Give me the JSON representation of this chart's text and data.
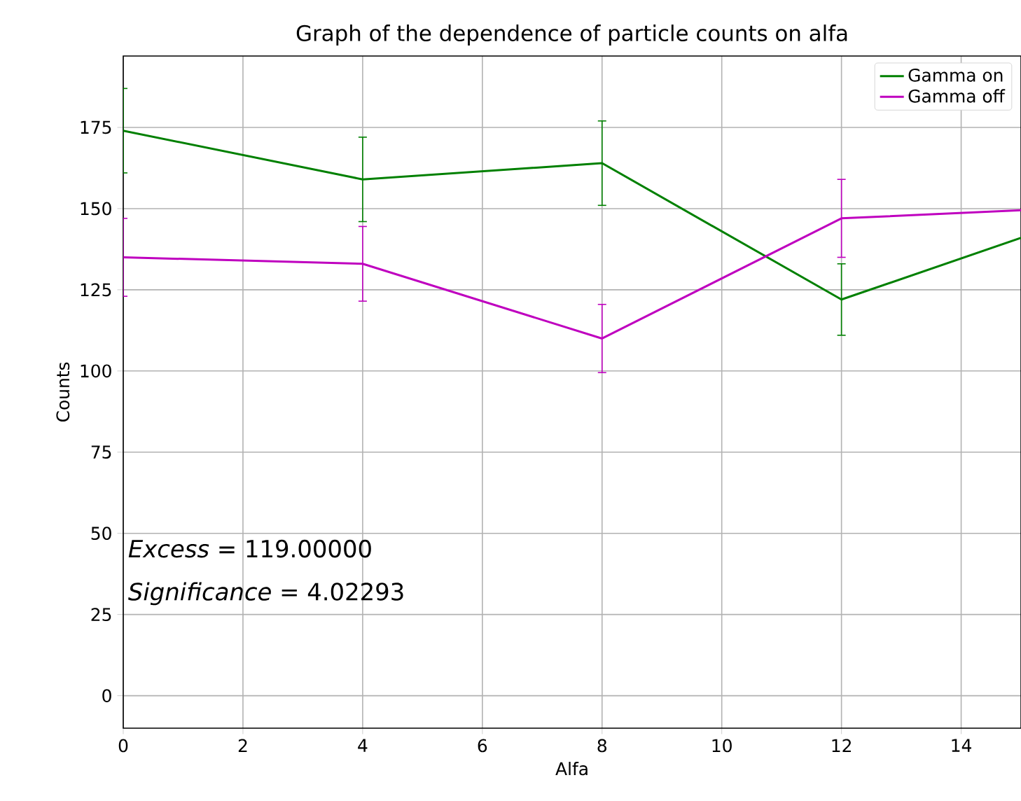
{
  "chart_data": {
    "type": "line",
    "title": "Graph of the dependence of particle counts on alfa",
    "xlabel": "Alfa",
    "ylabel": "Counts",
    "x": [
      0,
      4,
      8,
      12,
      15
    ],
    "series": [
      {
        "name": "Gamma on",
        "color": "#008000",
        "values": [
          174,
          159,
          164,
          122,
          141
        ],
        "errors": [
          13,
          13,
          13,
          11,
          null
        ]
      },
      {
        "name": "Gamma off",
        "color": "#bf00bf",
        "values": [
          135,
          133,
          110,
          147,
          149.5
        ],
        "errors": [
          12,
          11.5,
          10.5,
          12,
          null
        ]
      }
    ],
    "xlim": [
      0,
      15
    ],
    "xticks": [
      0,
      2,
      4,
      6,
      8,
      10,
      12,
      14
    ],
    "ylim": [
      -10,
      197
    ],
    "yticks": [
      0,
      25,
      50,
      75,
      100,
      125,
      150,
      175
    ],
    "grid": true,
    "legend": "top right",
    "marker": "none",
    "line_style": "solid",
    "annotations": [
      "*Excess* = 119.00000",
      "*Significance* = 4.02293"
    ]
  }
}
